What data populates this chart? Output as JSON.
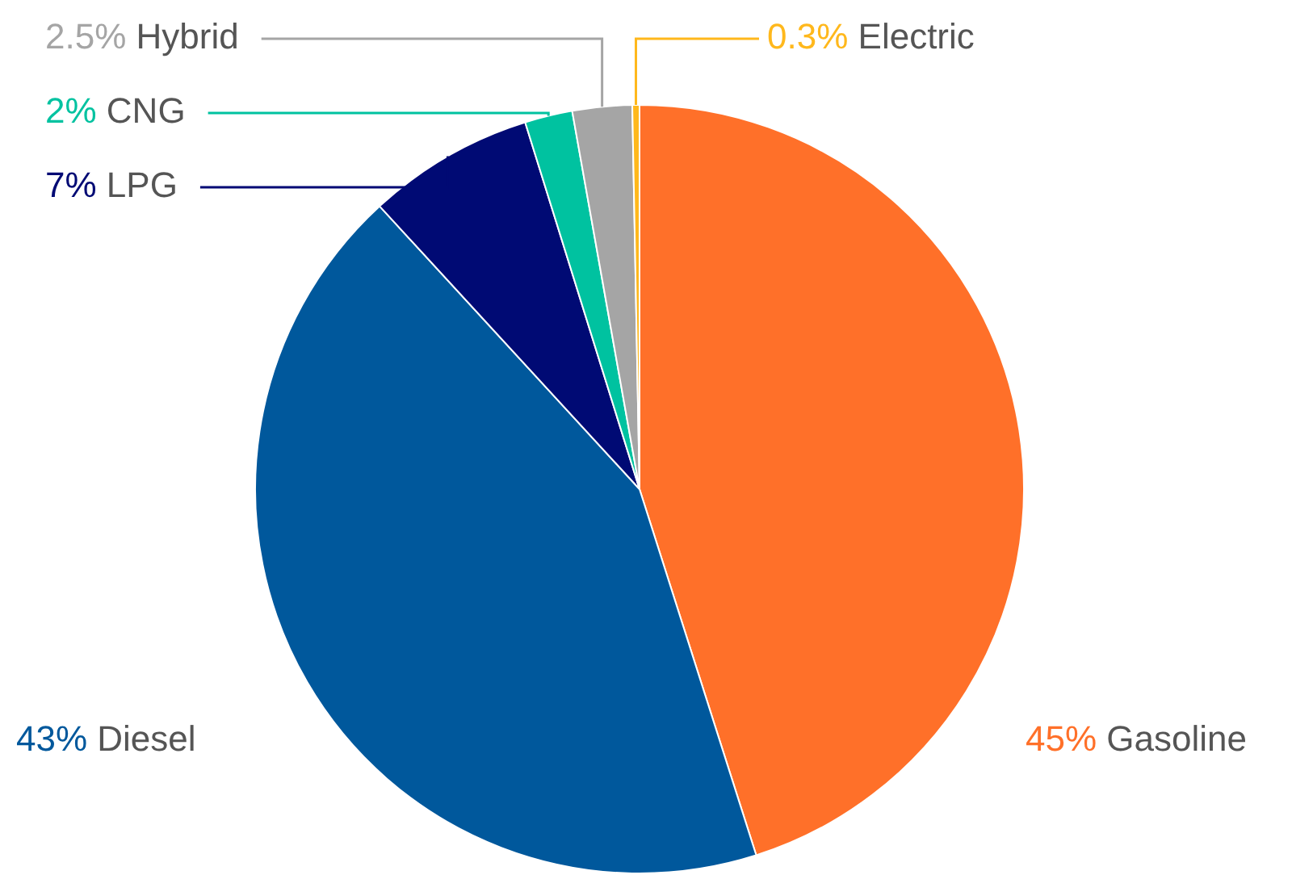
{
  "chart_data": {
    "type": "pie",
    "categories": [
      "Gasoline",
      "Diesel",
      "LPG",
      "CNG",
      "Hybrid",
      "Electric"
    ],
    "values": [
      45,
      43,
      7,
      2,
      2.5,
      0.3
    ],
    "value_labels": [
      "45%",
      "43%",
      "7%",
      "2%",
      "2.5%",
      "0.3%"
    ],
    "colors": [
      "#ff7029",
      "#00589c",
      "#000a74",
      "#00c2a0",
      "#a5a5a5",
      "#ffb81c"
    ]
  }
}
